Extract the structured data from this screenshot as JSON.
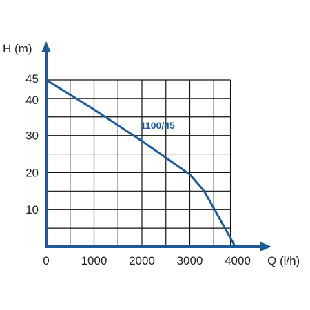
{
  "chart_data": {
    "type": "line",
    "xlabel": "Q (l/h)",
    "ylabel": "H (m)",
    "xlim": [
      0,
      4000
    ],
    "ylim": [
      0,
      45
    ],
    "x_ticks": [
      0,
      1000,
      2000,
      3000,
      4000
    ],
    "y_ticks": [
      10,
      20,
      30,
      40,
      45
    ],
    "grid": true,
    "series": [
      {
        "name": "1100/45",
        "x": [
          0,
          1000,
          2000,
          3000,
          3300,
          3950
        ],
        "y": [
          45,
          37,
          28.5,
          19.5,
          15,
          0
        ]
      }
    ]
  },
  "colors": {
    "axis": "#1d5a9c",
    "series": "#1d5a9c",
    "grid": "#111111"
  }
}
